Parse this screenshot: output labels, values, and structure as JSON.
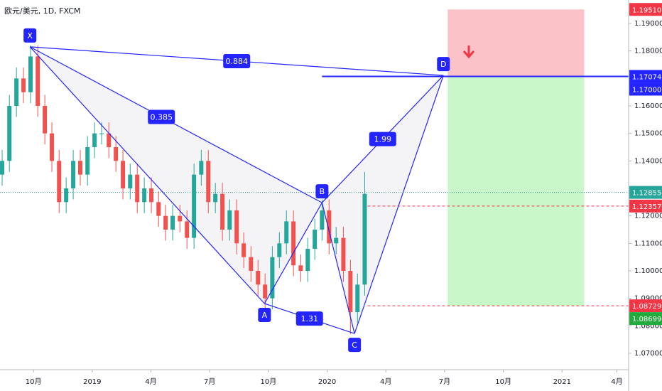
{
  "chart_data": {
    "type": "candlestick",
    "title": "欧元/美元, 1D, FXCM",
    "x": [
      -1.6,
      -1.23,
      -0.87,
      -0.51,
      -0.15,
      0.22,
      0.58,
      0.94,
      1.31,
      1.67,
      2.03,
      2.39,
      2.76,
      3.12,
      3.48,
      3.85,
      4.21,
      4.57,
      4.94,
      5.3,
      5.66,
      6.02,
      6.39,
      6.75,
      7.11,
      7.48,
      7.84,
      8.2,
      8.57,
      8.93,
      9.29,
      9.65,
      10.02,
      10.38,
      10.74,
      11.11,
      11.47,
      11.83,
      12.2,
      12.56,
      12.92,
      13.28,
      13.65,
      14.01,
      14.37,
      14.74,
      15.1,
      15.46,
      15.83,
      16.19,
      16.55,
      16.92
    ],
    "open": [
      1.135,
      1.14,
      1.16,
      1.17,
      1.165,
      1.178,
      1.16,
      1.15,
      1.14,
      1.125,
      1.13,
      1.14,
      1.135,
      1.145,
      1.15,
      1.15,
      1.145,
      1.14,
      1.13,
      1.135,
      1.125,
      1.13,
      1.125,
      1.12,
      1.115,
      1.12,
      1.118,
      1.112,
      1.135,
      1.14,
      1.125,
      1.128,
      1.115,
      1.122,
      1.11,
      1.105,
      1.1,
      1.095,
      1.09,
      1.105,
      1.11,
      1.118,
      1.102,
      1.1,
      1.108,
      1.115,
      1.122,
      1.11,
      1.112,
      1.1,
      1.085,
      1.095
    ],
    "high": [
      1.144,
      1.164,
      1.174,
      1.174,
      1.182,
      1.182,
      1.164,
      1.154,
      1.144,
      1.134,
      1.144,
      1.144,
      1.149,
      1.154,
      1.154,
      1.154,
      1.149,
      1.144,
      1.139,
      1.139,
      1.134,
      1.134,
      1.129,
      1.124,
      1.124,
      1.124,
      1.122,
      1.139,
      1.144,
      1.144,
      1.132,
      1.132,
      1.126,
      1.126,
      1.114,
      1.109,
      1.104,
      1.099,
      1.109,
      1.114,
      1.122,
      1.122,
      1.106,
      1.112,
      1.119,
      1.126,
      1.126,
      1.116,
      1.116,
      1.104,
      1.099,
      1.136
    ],
    "low": [
      1.131,
      1.136,
      1.156,
      1.161,
      1.161,
      1.156,
      1.146,
      1.136,
      1.121,
      1.121,
      1.126,
      1.131,
      1.131,
      1.141,
      1.146,
      1.141,
      1.136,
      1.126,
      1.126,
      1.121,
      1.121,
      1.121,
      1.116,
      1.111,
      1.111,
      1.114,
      1.108,
      1.108,
      1.131,
      1.121,
      1.121,
      1.111,
      1.111,
      1.106,
      1.101,
      1.096,
      1.091,
      1.086,
      1.086,
      1.101,
      1.106,
      1.098,
      1.096,
      1.096,
      1.104,
      1.111,
      1.106,
      1.106,
      1.096,
      1.077,
      1.081,
      1.091
    ],
    "close": [
      1.14,
      1.16,
      1.17,
      1.165,
      1.178,
      1.16,
      1.15,
      1.14,
      1.125,
      1.13,
      1.14,
      1.135,
      1.145,
      1.15,
      1.15,
      1.145,
      1.14,
      1.13,
      1.135,
      1.125,
      1.13,
      1.125,
      1.12,
      1.115,
      1.12,
      1.118,
      1.112,
      1.135,
      1.14,
      1.125,
      1.128,
      1.115,
      1.122,
      1.11,
      1.105,
      1.1,
      1.095,
      1.09,
      1.105,
      1.11,
      1.118,
      1.102,
      1.1,
      1.108,
      1.115,
      1.122,
      1.11,
      1.112,
      1.1,
      1.085,
      1.095,
      1.128
    ],
    "up_color": "#26a69a",
    "down_color": "#ef5350",
    "xlim": [
      -1.71,
      30.4
    ],
    "ylim": [
      1.06405,
      1.19853
    ],
    "xticks": [
      {
        "value": 0,
        "label": "10月"
      },
      {
        "value": 3,
        "label": "2019"
      },
      {
        "value": 6,
        "label": "4月"
      },
      {
        "value": 9,
        "label": "7月"
      },
      {
        "value": 12,
        "label": "10月"
      },
      {
        "value": 15,
        "label": "2020"
      },
      {
        "value": 18,
        "label": "4月"
      },
      {
        "value": 21,
        "label": "7月"
      },
      {
        "value": 24,
        "label": "10月"
      },
      {
        "value": 27,
        "label": "2021"
      },
      {
        "value": 29.8,
        "label": "4月"
      }
    ],
    "yticks": [
      {
        "value": 1.07,
        "label": "1.07000"
      },
      {
        "value": 1.08,
        "label": "1.08000"
      },
      {
        "value": 1.09,
        "label": "1.09000"
      },
      {
        "value": 1.1,
        "label": "1.10000"
      },
      {
        "value": 1.11,
        "label": "1.11000"
      },
      {
        "value": 1.12,
        "label": "1.12000"
      },
      {
        "value": 1.14,
        "label": "1.14000"
      },
      {
        "value": 1.15,
        "label": "1.15000"
      },
      {
        "value": 1.16,
        "label": "1.16000"
      },
      {
        "value": 1.18,
        "label": "1.18000"
      },
      {
        "value": 1.19,
        "label": "1.19000"
      }
    ],
    "pattern": {
      "points": [
        {
          "label": "X",
          "x": -0.18,
          "y": 1.1815
        },
        {
          "label": "A",
          "x": 11.8,
          "y": 1.0881
        },
        {
          "label": "B",
          "x": 14.74,
          "y": 1.1248
        },
        {
          "label": "C",
          "x": 16.4,
          "y": 1.0772
        },
        {
          "label": "D",
          "x": 20.94,
          "y": 1.1711
        }
      ],
      "ratios": [
        0.884,
        0.385,
        1.99,
        1.31
      ],
      "color": "#2424ff"
    },
    "position": {
      "x": [
        21.16,
        28.13
      ],
      "stop": 1.1951,
      "entry": 1.17074,
      "target": 1.08729
    },
    "levels": [
      {
        "value": 1.1951,
        "label": "1.19510",
        "color": "#f23645"
      },
      {
        "value": 1.17074,
        "label": "1.17074",
        "color": "#2424ff"
      },
      {
        "value": 1.17,
        "label": "1.17000",
        "color": "#2424ff"
      },
      {
        "value": 1.12855,
        "label": "1.12855",
        "color": "#26a69a"
      },
      {
        "value": 1.12357,
        "label": "1.12357",
        "color": "#f23645"
      },
      {
        "value": 1.08729,
        "label": "1.08729",
        "color": "#f23645"
      },
      {
        "value": 1.08699,
        "label": "1.08699",
        "color": "#22ab3c"
      }
    ]
  }
}
